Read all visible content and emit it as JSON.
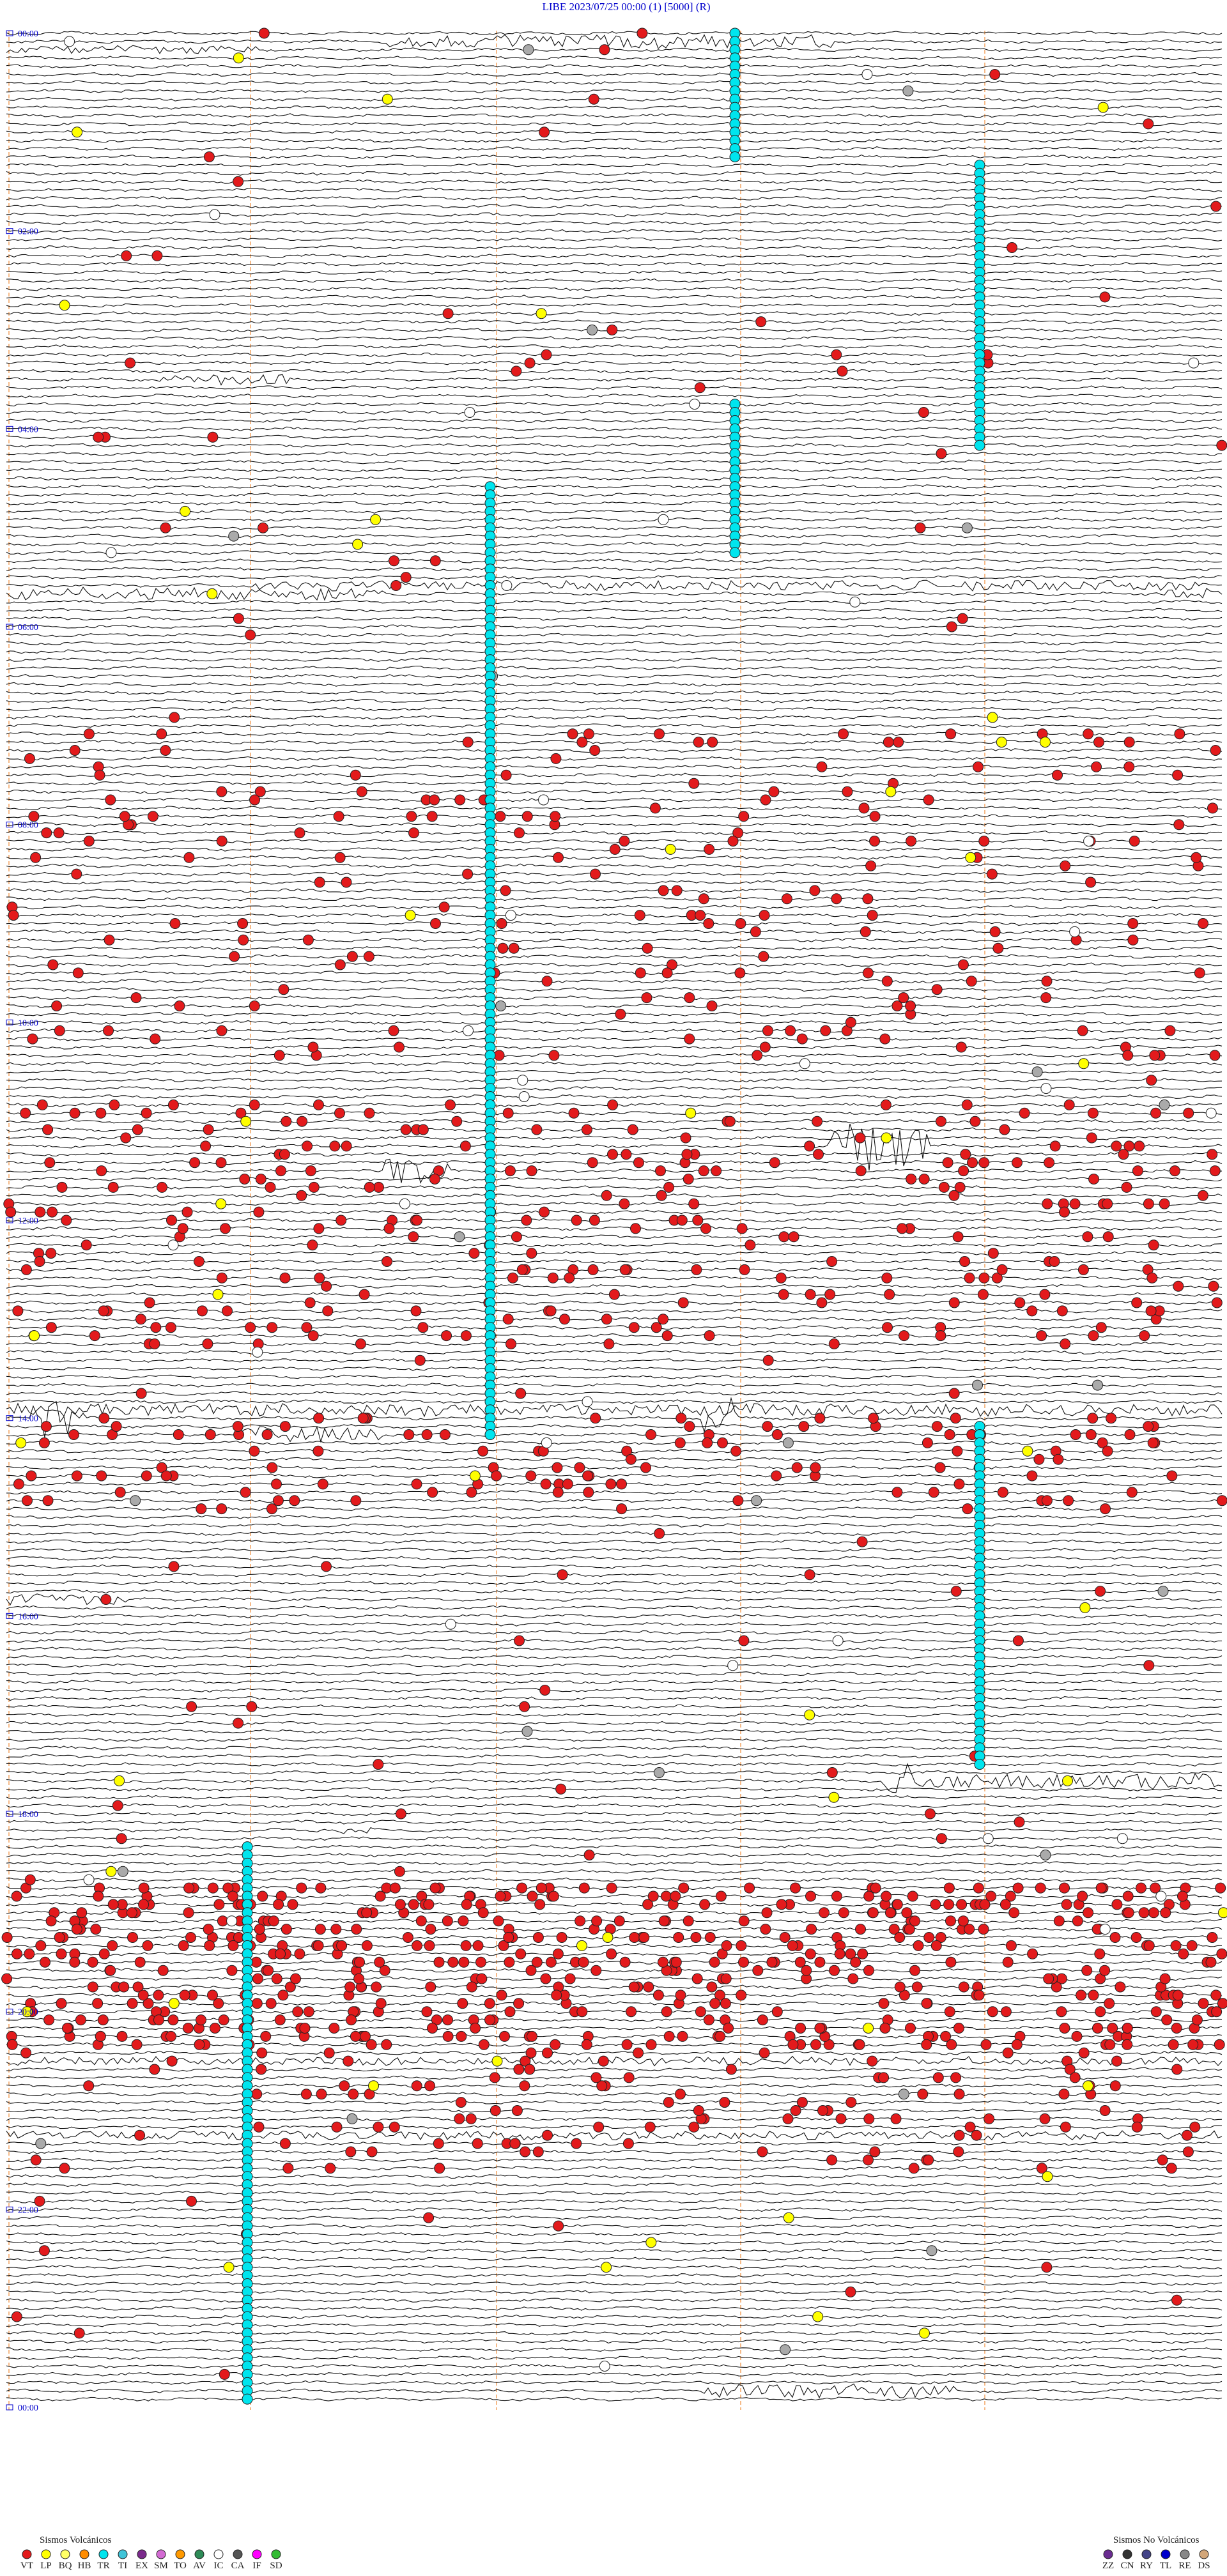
{
  "header": {
    "title": "LIBE    2023/07/25 00:00    (1)    [5000]  (R)"
  },
  "time_labels": [
    "00:00",
    "02:00",
    "04:00",
    "06:00",
    "08:00",
    "10:00",
    "12:00",
    "14:00",
    "16:00",
    "18:00",
    "20:00",
    "22:00",
    "00:00"
  ],
  "legend_volcanic": {
    "title": "Sismos Volcánicos",
    "items": [
      {
        "code": "VT",
        "color": "#e31a1c"
      },
      {
        "code": "LP",
        "color": "#ffff00"
      },
      {
        "code": "BQ",
        "color": "#ffff66"
      },
      {
        "code": "HB",
        "color": "#ff8c00"
      },
      {
        "code": "TR",
        "color": "#00e5ee"
      },
      {
        "code": "TI",
        "color": "#40c4d8"
      },
      {
        "code": "EX",
        "color": "#7b2a8c"
      },
      {
        "code": "SM",
        "color": "#d36bd3"
      },
      {
        "code": "TO",
        "color": "#ff9900"
      },
      {
        "code": "AV",
        "color": "#2e8b57"
      },
      {
        "code": "IC",
        "color": "#ffffff"
      },
      {
        "code": "CA",
        "color": "#555555"
      },
      {
        "code": "IF",
        "color": "#ff00ff"
      },
      {
        "code": "SD",
        "color": "#33bb33"
      }
    ]
  },
  "legend_nonvolcanic": {
    "title": "Sismos No Volcánicos",
    "items": [
      {
        "code": "ZZ",
        "color": "#6a2c91"
      },
      {
        "code": "CN",
        "color": "#333333"
      },
      {
        "code": "RY",
        "color": "#444488"
      },
      {
        "code": "TL",
        "color": "#0000cc"
      },
      {
        "code": "RE",
        "color": "#888888"
      },
      {
        "code": "DS",
        "color": "#d2a679"
      }
    ]
  }
}
